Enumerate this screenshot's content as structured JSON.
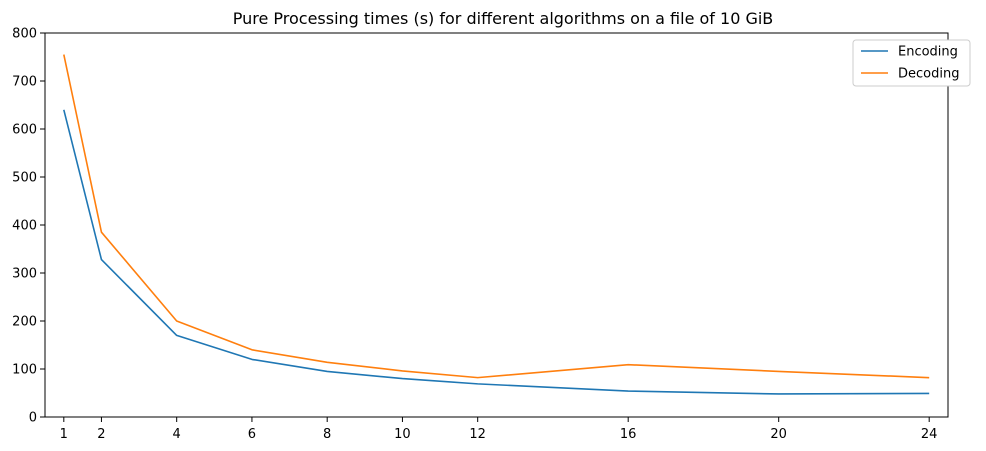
{
  "chart_data": {
    "type": "line",
    "title": "Pure Processing times (s) for different algorithms on a file of 10 GiB",
    "xlabel": "",
    "ylabel": "",
    "x": [
      1,
      2,
      4,
      6,
      8,
      10,
      12,
      16,
      20,
      24
    ],
    "xlim": [
      0.5,
      24.5
    ],
    "ylim": [
      0,
      800
    ],
    "yticks": [
      0,
      100,
      200,
      300,
      400,
      500,
      600,
      700,
      800
    ],
    "grid": false,
    "legend_position": "top-right",
    "series": [
      {
        "name": "Encoding",
        "color": "#1f77b4",
        "values": [
          640,
          328,
          170,
          120,
          95,
          80,
          69,
          54,
          48,
          49
        ]
      },
      {
        "name": "Decoding",
        "color": "#ff7f0e",
        "values": [
          755,
          385,
          200,
          140,
          114,
          96,
          82,
          109,
          95,
          82
        ]
      }
    ]
  }
}
